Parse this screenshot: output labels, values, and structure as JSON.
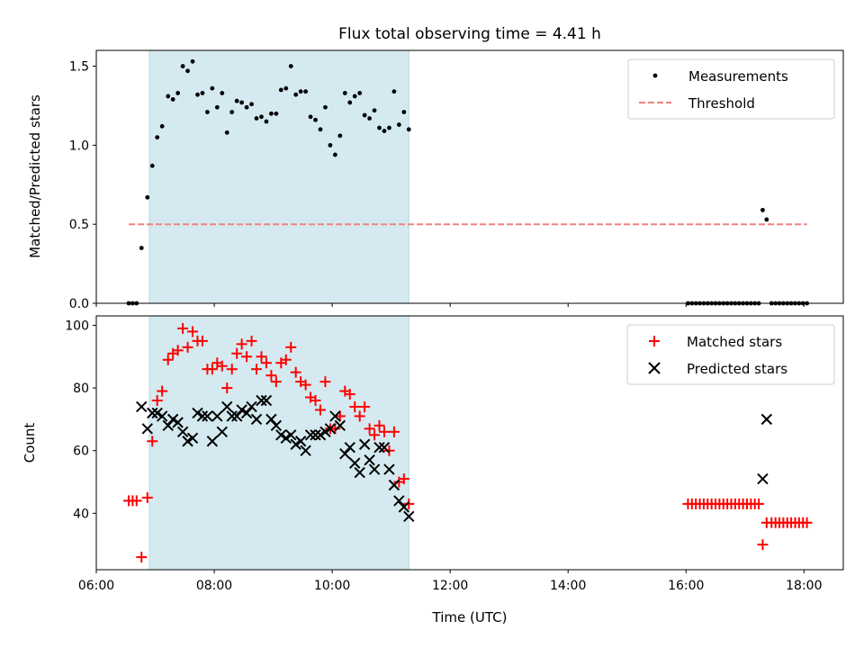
{
  "chart_data": [
    {
      "panel": "top",
      "type": "scatter",
      "title": "Flux total observing time = 4.41 h",
      "ylabel": "Matched/Predicted stars",
      "ylim": [
        0,
        1.6
      ],
      "yticks": [
        0.0,
        0.5,
        1.0,
        1.5
      ],
      "yticklabels": [
        "0.0",
        "0.5",
        "1.0",
        "1.5"
      ],
      "shaded_span": {
        "x0": "06:54",
        "x1": "11:18",
        "color": "#d4eaf0"
      },
      "legend_position": "top-right",
      "series": [
        {
          "name": "Measurements",
          "marker": "dot",
          "color": "#000000",
          "points": [
            [
              "06:33",
              0.0
            ],
            [
              "06:37",
              0.0
            ],
            [
              "06:41",
              0.0
            ],
            [
              "06:46",
              0.35
            ],
            [
              "06:52",
              0.67
            ],
            [
              "06:57",
              0.87
            ],
            [
              "07:02",
              1.05
            ],
            [
              "07:07",
              1.12
            ],
            [
              "07:13",
              1.31
            ],
            [
              "07:18",
              1.29
            ],
            [
              "07:23",
              1.33
            ],
            [
              "07:28",
              1.5
            ],
            [
              "07:33",
              1.47
            ],
            [
              "07:38",
              1.53
            ],
            [
              "07:43",
              1.32
            ],
            [
              "07:48",
              1.33
            ],
            [
              "07:53",
              1.21
            ],
            [
              "07:58",
              1.36
            ],
            [
              "08:03",
              1.24
            ],
            [
              "08:08",
              1.33
            ],
            [
              "08:13",
              1.08
            ],
            [
              "08:18",
              1.21
            ],
            [
              "08:23",
              1.28
            ],
            [
              "08:28",
              1.27
            ],
            [
              "08:33",
              1.24
            ],
            [
              "08:38",
              1.26
            ],
            [
              "08:43",
              1.17
            ],
            [
              "08:48",
              1.18
            ],
            [
              "08:53",
              1.15
            ],
            [
              "08:58",
              1.2
            ],
            [
              "09:03",
              1.2
            ],
            [
              "09:08",
              1.35
            ],
            [
              "09:13",
              1.36
            ],
            [
              "09:18",
              1.5
            ],
            [
              "09:23",
              1.32
            ],
            [
              "09:28",
              1.34
            ],
            [
              "09:33",
              1.34
            ],
            [
              "09:38",
              1.18
            ],
            [
              "09:43",
              1.16
            ],
            [
              "09:48",
              1.1
            ],
            [
              "09:53",
              1.24
            ],
            [
              "09:58",
              1.0
            ],
            [
              "10:03",
              0.94
            ],
            [
              "10:08",
              1.06
            ],
            [
              "10:13",
              1.33
            ],
            [
              "10:18",
              1.27
            ],
            [
              "10:23",
              1.31
            ],
            [
              "10:28",
              1.33
            ],
            [
              "10:33",
              1.19
            ],
            [
              "10:38",
              1.17
            ],
            [
              "10:43",
              1.22
            ],
            [
              "10:48",
              1.11
            ],
            [
              "10:53",
              1.09
            ],
            [
              "10:58",
              1.11
            ],
            [
              "11:03",
              1.34
            ],
            [
              "11:08",
              1.13
            ],
            [
              "11:13",
              1.21
            ],
            [
              "11:18",
              1.1
            ],
            [
              "16:02",
              0.0
            ],
            [
              "16:06",
              0.0
            ],
            [
              "16:10",
              0.0
            ],
            [
              "16:14",
              0.0
            ],
            [
              "16:18",
              0.0
            ],
            [
              "16:22",
              0.0
            ],
            [
              "16:26",
              0.0
            ],
            [
              "16:30",
              0.0
            ],
            [
              "16:34",
              0.0
            ],
            [
              "16:38",
              0.0
            ],
            [
              "16:42",
              0.0
            ],
            [
              "16:46",
              0.0
            ],
            [
              "16:50",
              0.0
            ],
            [
              "16:54",
              0.0
            ],
            [
              "16:58",
              0.0
            ],
            [
              "17:02",
              0.0
            ],
            [
              "17:06",
              0.0
            ],
            [
              "17:10",
              0.0
            ],
            [
              "17:14",
              0.0
            ],
            [
              "17:18",
              0.59
            ],
            [
              "17:22",
              0.53
            ],
            [
              "17:27",
              0.0
            ],
            [
              "17:31",
              0.0
            ],
            [
              "17:35",
              0.0
            ],
            [
              "17:39",
              0.0
            ],
            [
              "17:43",
              0.0
            ],
            [
              "17:47",
              0.0
            ],
            [
              "17:51",
              0.0
            ],
            [
              "17:55",
              0.0
            ],
            [
              "17:59",
              0.0
            ],
            [
              "18:03",
              0.0
            ]
          ]
        },
        {
          "name": "Threshold",
          "line_style": "dashed",
          "color": "#f08080",
          "points": [
            [
              "06:33",
              0.5
            ],
            [
              "18:03",
              0.5
            ]
          ]
        }
      ]
    },
    {
      "panel": "bottom",
      "type": "scatter",
      "xlabel": "Time (UTC)",
      "ylabel": "Count",
      "ylim": [
        22,
        103
      ],
      "yticks": [
        40,
        60,
        80,
        100
      ],
      "yticklabels": [
        "40",
        "60",
        "80",
        "100"
      ],
      "xlim": [
        "06:00",
        "18:40"
      ],
      "xticklabels": [
        "06:00",
        "08:00",
        "10:00",
        "12:00",
        "14:00",
        "16:00",
        "18:00"
      ],
      "shaded_span": {
        "x0": "06:54",
        "x1": "11:18",
        "color": "#d4eaf0"
      },
      "legend_position": "top-right",
      "series": [
        {
          "name": "Matched stars",
          "marker": "plus",
          "color": "#ff0000",
          "points": [
            [
              "06:33",
              44
            ],
            [
              "06:37",
              44
            ],
            [
              "06:41",
              44
            ],
            [
              "06:46",
              26
            ],
            [
              "06:52",
              45
            ],
            [
              "06:57",
              63
            ],
            [
              "07:02",
              76
            ],
            [
              "07:07",
              79
            ],
            [
              "07:13",
              89
            ],
            [
              "07:18",
              91
            ],
            [
              "07:23",
              92
            ],
            [
              "07:28",
              99
            ],
            [
              "07:33",
              93
            ],
            [
              "07:38",
              98
            ],
            [
              "07:43",
              95
            ],
            [
              "07:48",
              95
            ],
            [
              "07:53",
              86
            ],
            [
              "07:58",
              86
            ],
            [
              "08:03",
              88
            ],
            [
              "08:08",
              87
            ],
            [
              "08:13",
              80
            ],
            [
              "08:18",
              86
            ],
            [
              "08:23",
              91
            ],
            [
              "08:28",
              94
            ],
            [
              "08:33",
              90
            ],
            [
              "08:38",
              95
            ],
            [
              "08:43",
              86
            ],
            [
              "08:48",
              90
            ],
            [
              "08:53",
              88
            ],
            [
              "08:58",
              84
            ],
            [
              "09:03",
              82
            ],
            [
              "09:08",
              88
            ],
            [
              "09:13",
              89
            ],
            [
              "09:18",
              93
            ],
            [
              "09:23",
              85
            ],
            [
              "09:28",
              82
            ],
            [
              "09:33",
              81
            ],
            [
              "09:38",
              77
            ],
            [
              "09:43",
              76
            ],
            [
              "09:48",
              73
            ],
            [
              "09:53",
              82
            ],
            [
              "09:58",
              67
            ],
            [
              "10:03",
              67
            ],
            [
              "10:08",
              71
            ],
            [
              "10:13",
              79
            ],
            [
              "10:18",
              78
            ],
            [
              "10:23",
              74
            ],
            [
              "10:28",
              71
            ],
            [
              "10:33",
              74
            ],
            [
              "10:38",
              67
            ],
            [
              "10:43",
              65
            ],
            [
              "10:48",
              68
            ],
            [
              "10:53",
              66
            ],
            [
              "10:58",
              60
            ],
            [
              "11:03",
              66
            ],
            [
              "11:08",
              50
            ],
            [
              "11:13",
              51
            ],
            [
              "11:18",
              43
            ],
            [
              "16:02",
              43
            ],
            [
              "16:06",
              43
            ],
            [
              "16:10",
              43
            ],
            [
              "16:14",
              43
            ],
            [
              "16:18",
              43
            ],
            [
              "16:22",
              43
            ],
            [
              "16:26",
              43
            ],
            [
              "16:30",
              43
            ],
            [
              "16:34",
              43
            ],
            [
              "16:38",
              43
            ],
            [
              "16:42",
              43
            ],
            [
              "16:46",
              43
            ],
            [
              "16:50",
              43
            ],
            [
              "16:54",
              43
            ],
            [
              "16:58",
              43
            ],
            [
              "17:02",
              43
            ],
            [
              "17:06",
              43
            ],
            [
              "17:10",
              43
            ],
            [
              "17:14",
              43
            ],
            [
              "17:18",
              30
            ],
            [
              "17:22",
              37
            ],
            [
              "17:27",
              37
            ],
            [
              "17:31",
              37
            ],
            [
              "17:35",
              37
            ],
            [
              "17:39",
              37
            ],
            [
              "17:43",
              37
            ],
            [
              "17:47",
              37
            ],
            [
              "17:51",
              37
            ],
            [
              "17:55",
              37
            ],
            [
              "17:59",
              37
            ],
            [
              "18:03",
              37
            ]
          ]
        },
        {
          "name": "Predicted stars",
          "marker": "x",
          "color": "#000000",
          "points": [
            [
              "06:46",
              74
            ],
            [
              "06:52",
              67
            ],
            [
              "06:57",
              72
            ],
            [
              "07:02",
              72
            ],
            [
              "07:07",
              71
            ],
            [
              "07:13",
              68
            ],
            [
              "07:18",
              70
            ],
            [
              "07:23",
              69
            ],
            [
              "07:28",
              66
            ],
            [
              "07:33",
              63
            ],
            [
              "07:38",
              64
            ],
            [
              "07:43",
              72
            ],
            [
              "07:48",
              71
            ],
            [
              "07:53",
              71
            ],
            [
              "07:58",
              63
            ],
            [
              "08:03",
              71
            ],
            [
              "08:08",
              66
            ],
            [
              "08:13",
              74
            ],
            [
              "08:18",
              71
            ],
            [
              "08:23",
              71
            ],
            [
              "08:28",
              73
            ],
            [
              "08:33",
              72
            ],
            [
              "08:38",
              74
            ],
            [
              "08:43",
              70
            ],
            [
              "08:48",
              76
            ],
            [
              "08:53",
              76
            ],
            [
              "08:58",
              70
            ],
            [
              "09:03",
              68
            ],
            [
              "09:08",
              65
            ],
            [
              "09:13",
              64
            ],
            [
              "09:18",
              65
            ],
            [
              "09:23",
              62
            ],
            [
              "09:28",
              63
            ],
            [
              "09:33",
              60
            ],
            [
              "09:38",
              65
            ],
            [
              "09:43",
              65
            ],
            [
              "09:48",
              65
            ],
            [
              "09:53",
              66
            ],
            [
              "09:58",
              67
            ],
            [
              "10:03",
              71
            ],
            [
              "10:08",
              68
            ],
            [
              "10:13",
              59
            ],
            [
              "10:18",
              61
            ],
            [
              "10:23",
              56
            ],
            [
              "10:28",
              53
            ],
            [
              "10:33",
              62
            ],
            [
              "10:38",
              57
            ],
            [
              "10:43",
              54
            ],
            [
              "10:48",
              61
            ],
            [
              "10:53",
              61
            ],
            [
              "10:58",
              54
            ],
            [
              "11:03",
              49
            ],
            [
              "11:08",
              44
            ],
            [
              "11:13",
              42
            ],
            [
              "11:18",
              39
            ],
            [
              "17:18",
              51
            ],
            [
              "17:22",
              70
            ]
          ]
        }
      ]
    }
  ]
}
